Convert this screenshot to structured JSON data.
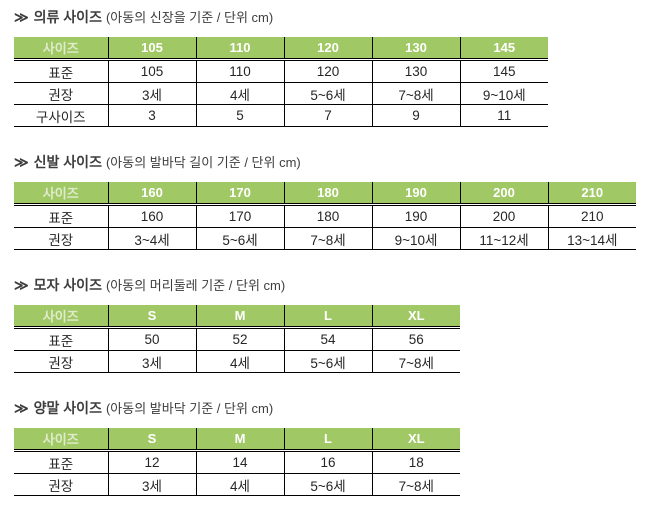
{
  "colors": {
    "header_bg": "#a0c965",
    "header_label_text": "#e0ebcc",
    "header_value_text": "#ffffff",
    "body_text": "#262626",
    "title_text": "#3d3d3d",
    "border": "#000000",
    "page_bg": "#ffffff"
  },
  "sections": [
    {
      "id": "clothing",
      "chevron": "≫",
      "title_main": "의류 사이즈",
      "title_note": "(아동의 신장을 기준 / 단위 cm)",
      "table": {
        "corner_label": "사이즈",
        "columns": [
          "105",
          "110",
          "120",
          "130",
          "145"
        ],
        "rows": [
          {
            "label": "표준",
            "values": [
              "105",
              "110",
              "120",
              "130",
              "145"
            ]
          },
          {
            "label": "권장",
            "values": [
              "3세",
              "4세",
              "5~6세",
              "7~8세",
              "9~10세"
            ]
          },
          {
            "label": "구사이즈",
            "values": [
              "3",
              "5",
              "7",
              "9",
              "11"
            ]
          }
        ]
      }
    },
    {
      "id": "shoes",
      "chevron": "≫",
      "title_main": "신발 사이즈",
      "title_note": "(아동의 발바닥 길이 기준 / 단위 cm)",
      "table": {
        "corner_label": "사이즈",
        "columns": [
          "160",
          "170",
          "180",
          "190",
          "200",
          "210"
        ],
        "rows": [
          {
            "label": "표준",
            "values": [
              "160",
              "170",
              "180",
              "190",
              "200",
              "210"
            ]
          },
          {
            "label": "권장",
            "values": [
              "3~4세",
              "5~6세",
              "7~8세",
              "9~10세",
              "11~12세",
              "13~14세"
            ]
          }
        ]
      }
    },
    {
      "id": "hats",
      "chevron": "≫",
      "title_main": "모자 사이즈",
      "title_note": "(아동의 머리둘레 기준 / 단위 cm)",
      "table": {
        "corner_label": "사이즈",
        "columns": [
          "S",
          "M",
          "L",
          "XL"
        ],
        "rows": [
          {
            "label": "표준",
            "values": [
              "50",
              "52",
              "54",
              "56"
            ]
          },
          {
            "label": "권장",
            "values": [
              "3세",
              "4세",
              "5~6세",
              "7~8세"
            ]
          }
        ]
      }
    },
    {
      "id": "socks",
      "chevron": "≫",
      "title_main": "양말 사이즈",
      "title_note": "(아동의 발바닥 기준 / 단위 cm)",
      "table": {
        "corner_label": "사이즈",
        "columns": [
          "S",
          "M",
          "L",
          "XL"
        ],
        "rows": [
          {
            "label": "표준",
            "values": [
              "12",
              "14",
              "16",
              "18"
            ]
          },
          {
            "label": "권장",
            "values": [
              "3세",
              "4세",
              "5~6세",
              "7~8세"
            ]
          }
        ]
      }
    }
  ]
}
